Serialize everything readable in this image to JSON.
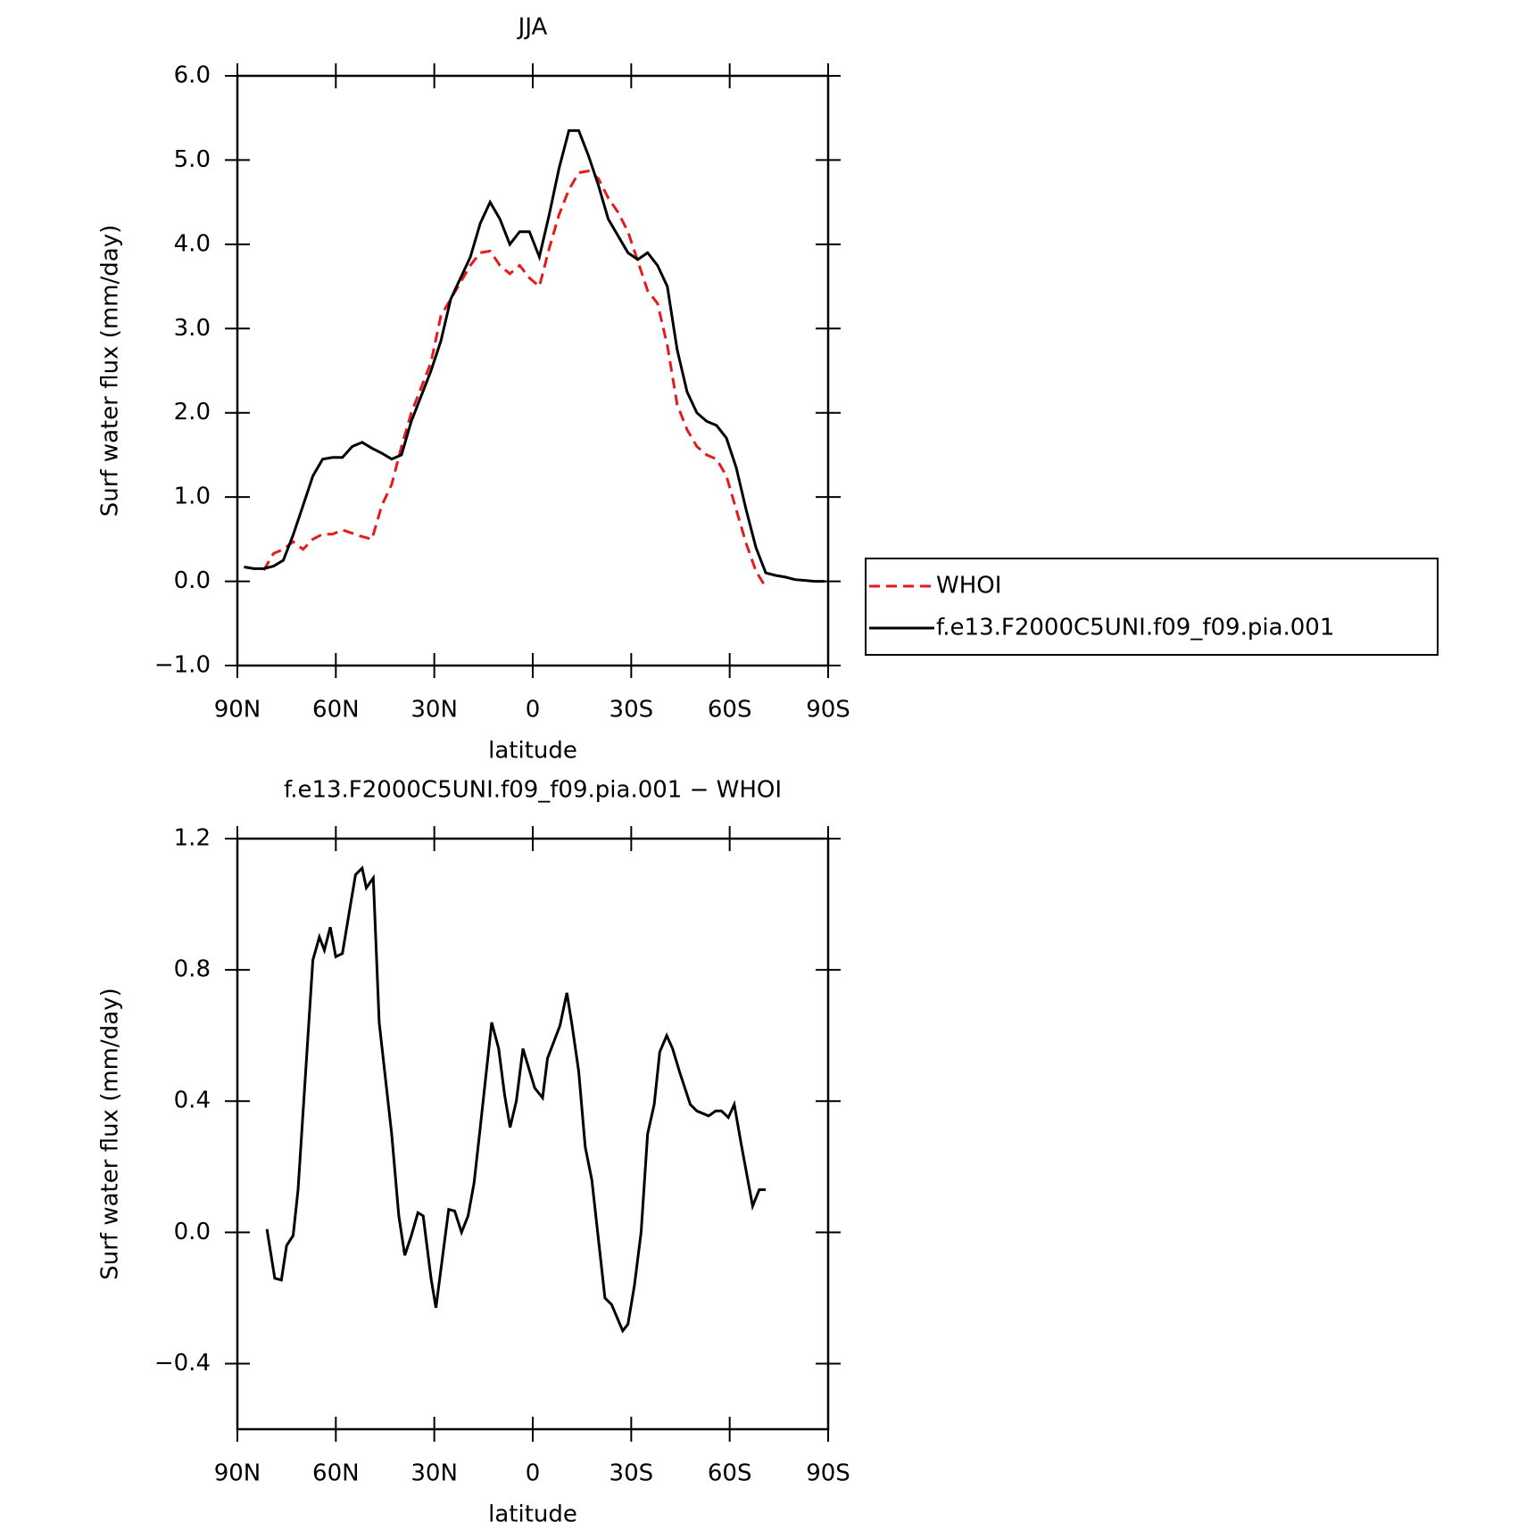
{
  "chart_data": [
    {
      "type": "line",
      "title": "JJA",
      "x_label": "latitude",
      "y_label": "Surf water flux (mm/day)",
      "x": [
        88,
        85,
        82,
        79,
        76,
        73,
        70,
        67,
        64,
        61,
        58,
        55,
        52,
        49,
        46,
        43,
        40,
        37,
        34,
        31,
        28,
        25,
        22,
        19,
        16,
        13,
        10,
        7,
        4,
        1,
        -2,
        -5,
        -8,
        -11,
        -14,
        -17,
        -20,
        -23,
        -26,
        -29,
        -32,
        -35,
        -38,
        -41,
        -44,
        -47,
        -50,
        -53,
        -56,
        -59,
        -62,
        -65,
        -68,
        -71,
        -74,
        -77,
        -80,
        -83,
        -86,
        -89
      ],
      "series": [
        {
          "name": "WHOI",
          "color": "#e41a1c",
          "dashed": true,
          "values": [
            null,
            null,
            0.13,
            0.33,
            0.38,
            0.47,
            0.38,
            0.5,
            0.56,
            0.56,
            0.61,
            0.57,
            0.53,
            0.5,
            0.9,
            1.15,
            1.6,
            2.0,
            2.3,
            2.6,
            3.15,
            3.35,
            3.55,
            3.75,
            3.9,
            3.92,
            3.75,
            3.65,
            3.75,
            3.6,
            3.5,
            3.95,
            4.35,
            4.65,
            4.85,
            4.87,
            4.78,
            4.55,
            4.38,
            4.15,
            3.8,
            3.45,
            3.3,
            2.8,
            2.1,
            1.8,
            1.6,
            1.5,
            1.45,
            1.25,
            0.85,
            0.45,
            0.12,
            -0.07,
            null,
            null,
            null,
            null,
            null,
            null
          ]
        },
        {
          "name": "f.e13.F2000C5UNI.f09_f09.pia.001",
          "color": "#000000",
          "dashed": false,
          "values": [
            0.17,
            0.15,
            0.15,
            0.18,
            0.25,
            0.55,
            0.9,
            1.25,
            1.45,
            1.47,
            1.47,
            1.6,
            1.65,
            1.58,
            1.52,
            1.45,
            1.5,
            1.9,
            2.2,
            2.5,
            2.85,
            3.35,
            3.6,
            3.85,
            4.25,
            4.5,
            4.3,
            4.0,
            4.15,
            4.15,
            3.85,
            4.35,
            4.9,
            5.35,
            5.35,
            5.05,
            4.7,
            4.3,
            4.1,
            3.9,
            3.82,
            3.9,
            3.75,
            3.5,
            2.75,
            2.25,
            2.0,
            1.9,
            1.85,
            1.7,
            1.35,
            0.85,
            0.4,
            0.1,
            0.07,
            0.05,
            0.02,
            0.01,
            0.0,
            0.0
          ]
        }
      ],
      "xlim": [
        90,
        -90
      ],
      "xticks": [
        {
          "value": 90,
          "label": "90N"
        },
        {
          "value": 60,
          "label": "60N"
        },
        {
          "value": 30,
          "label": "30N"
        },
        0,
        {
          "value": -30,
          "label": "30S"
        },
        {
          "value": -60,
          "label": "60S"
        },
        {
          "value": -90,
          "label": "90S"
        }
      ],
      "ylim": [
        -1,
        6
      ],
      "yticks": [
        {
          "value": 6,
          "label": "6.0"
        },
        {
          "value": 5,
          "label": "5.0"
        },
        {
          "value": 4,
          "label": "4.0"
        },
        {
          "value": 3,
          "label": "3.0"
        },
        {
          "value": 2,
          "label": "2.0"
        },
        {
          "value": 1,
          "label": "1.0"
        },
        {
          "value": 0,
          "label": "0.0"
        },
        {
          "value": -1,
          "label": "−1.0"
        }
      ],
      "legend": "outside-right"
    },
    {
      "type": "line",
      "title": "f.e13.F2000C5UNI.f09_f09.pia.001 − WHOI",
      "x_label": "latitude",
      "y_label": "Surf water flux (mm/day)",
      "x": [
        81,
        78.6,
        76.6,
        75,
        73,
        71.5,
        67,
        65,
        63.5,
        61.7,
        60,
        58,
        56,
        54,
        52,
        50.7,
        48.6,
        46.8,
        43,
        40.8,
        39,
        37,
        35,
        33.4,
        31,
        29.5,
        25.6,
        23.8,
        21.7,
        19.7,
        17.9,
        16,
        12.5,
        10.4,
        8.6,
        6.9,
        5,
        3,
        -0.6,
        -3,
        -4.5,
        -8.3,
        -10.4,
        -12,
        -14,
        -16,
        -18,
        -22,
        -24,
        -27.4,
        -29,
        -31,
        -33,
        -35,
        -37,
        -38.7,
        -40.8,
        -42.6,
        -44.7,
        -48,
        -50,
        -53.6,
        -55.7,
        -57.5,
        -59.6,
        -61.4,
        -63.5,
        -67,
        -69,
        -71
      ],
      "values": [
        0.01,
        -0.14,
        -0.145,
        -0.04,
        -0.01,
        0.13,
        0.83,
        0.9,
        0.86,
        0.93,
        0.84,
        0.85,
        0.97,
        1.09,
        1.11,
        1.05,
        1.08,
        0.64,
        0.3,
        0.05,
        -0.07,
        -0.01,
        0.06,
        0.05,
        -0.14,
        -0.23,
        0.07,
        0.065,
        0.0,
        0.05,
        0.15,
        0.32,
        0.64,
        0.56,
        0.42,
        0.32,
        0.4,
        0.56,
        0.44,
        0.41,
        0.53,
        0.63,
        0.73,
        0.63,
        0.49,
        0.26,
        0.16,
        -0.2,
        -0.22,
        -0.3,
        -0.28,
        -0.16,
        0.0,
        0.3,
        0.39,
        0.55,
        0.6,
        0.56,
        0.49,
        0.39,
        0.37,
        0.355,
        0.37,
        0.37,
        0.35,
        0.39,
        0.27,
        0.08,
        0.13,
        0.13
      ],
      "color": "#000000",
      "xlim": [
        90,
        -90
      ],
      "xticks": [
        {
          "value": 90,
          "label": "90N"
        },
        {
          "value": 60,
          "label": "60N"
        },
        {
          "value": 30,
          "label": "30N"
        },
        0,
        {
          "value": -30,
          "label": "30S"
        },
        {
          "value": -60,
          "label": "60S"
        },
        {
          "value": -90,
          "label": "90S"
        }
      ],
      "ylim": [
        -0.6,
        1.2
      ],
      "yticks": [
        1.2,
        0.8,
        0.4,
        {
          "value": 0,
          "label": "0.0"
        },
        {
          "value": -0.4,
          "label": "−0.4"
        }
      ]
    }
  ]
}
